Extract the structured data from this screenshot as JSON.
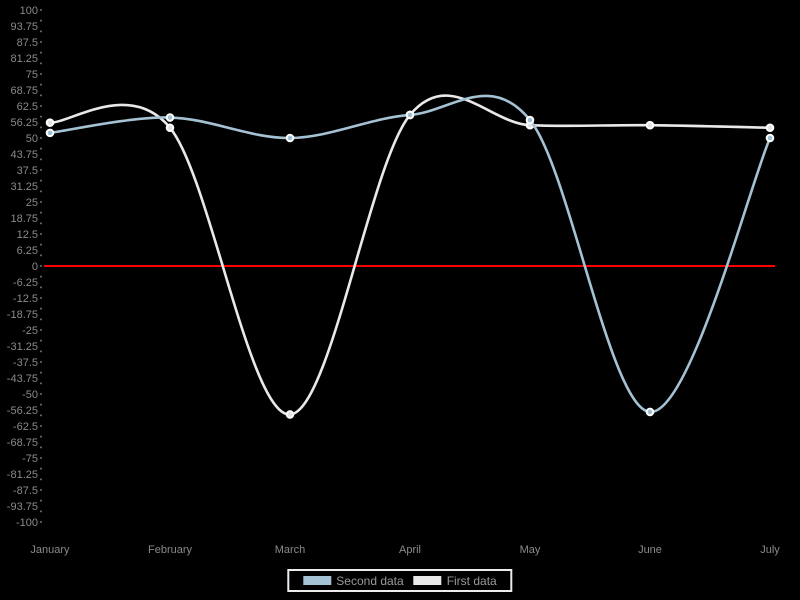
{
  "chart_data": {
    "type": "line",
    "line_style": "spline",
    "title": "",
    "xlabel": "",
    "ylabel": "",
    "background_color": "#000000",
    "axis_text_color": "#8a8a8a",
    "grid": false,
    "categories": [
      "January",
      "February",
      "March",
      "April",
      "May",
      "June",
      "July"
    ],
    "series": [
      {
        "name": "Second data",
        "color": "#a4c2d3",
        "marker_fill": "#9dbfd4",
        "marker_stroke": "#ffffff",
        "values": [
          52,
          58,
          50,
          59,
          57,
          -57,
          50
        ]
      },
      {
        "name": "First data",
        "color": "#e9e9e9",
        "marker_fill": "#e2e2e2",
        "marker_stroke": "#ffffff",
        "values": [
          56,
          54,
          -58,
          59,
          55,
          55,
          54
        ]
      }
    ],
    "ylim": [
      -100,
      100
    ],
    "y_tick_step": 6.25,
    "y_ticks": [
      "100",
      "93.75",
      "87.5",
      "81.25",
      "75",
      "68.75",
      "62.5",
      "56.25",
      "50",
      "43.75",
      "37.5",
      "31.25",
      "25",
      "18.75",
      "12.5",
      "6.25",
      "0",
      "-6.25",
      "-12.5",
      "-18.75",
      "-25",
      "-31.25",
      "-37.5",
      "-43.75",
      "-50",
      "-56.25",
      "-62.5",
      "-68.75",
      "-75",
      "-81.25",
      "-87.5",
      "-93.75",
      "-100"
    ],
    "zero_line": {
      "value": 0,
      "color": "#fe0000"
    },
    "marker_shape": "circle",
    "legend_position": "bottom-center"
  },
  "legend": {
    "border_color": "#ececec",
    "text_color": "#9a9a9a"
  }
}
